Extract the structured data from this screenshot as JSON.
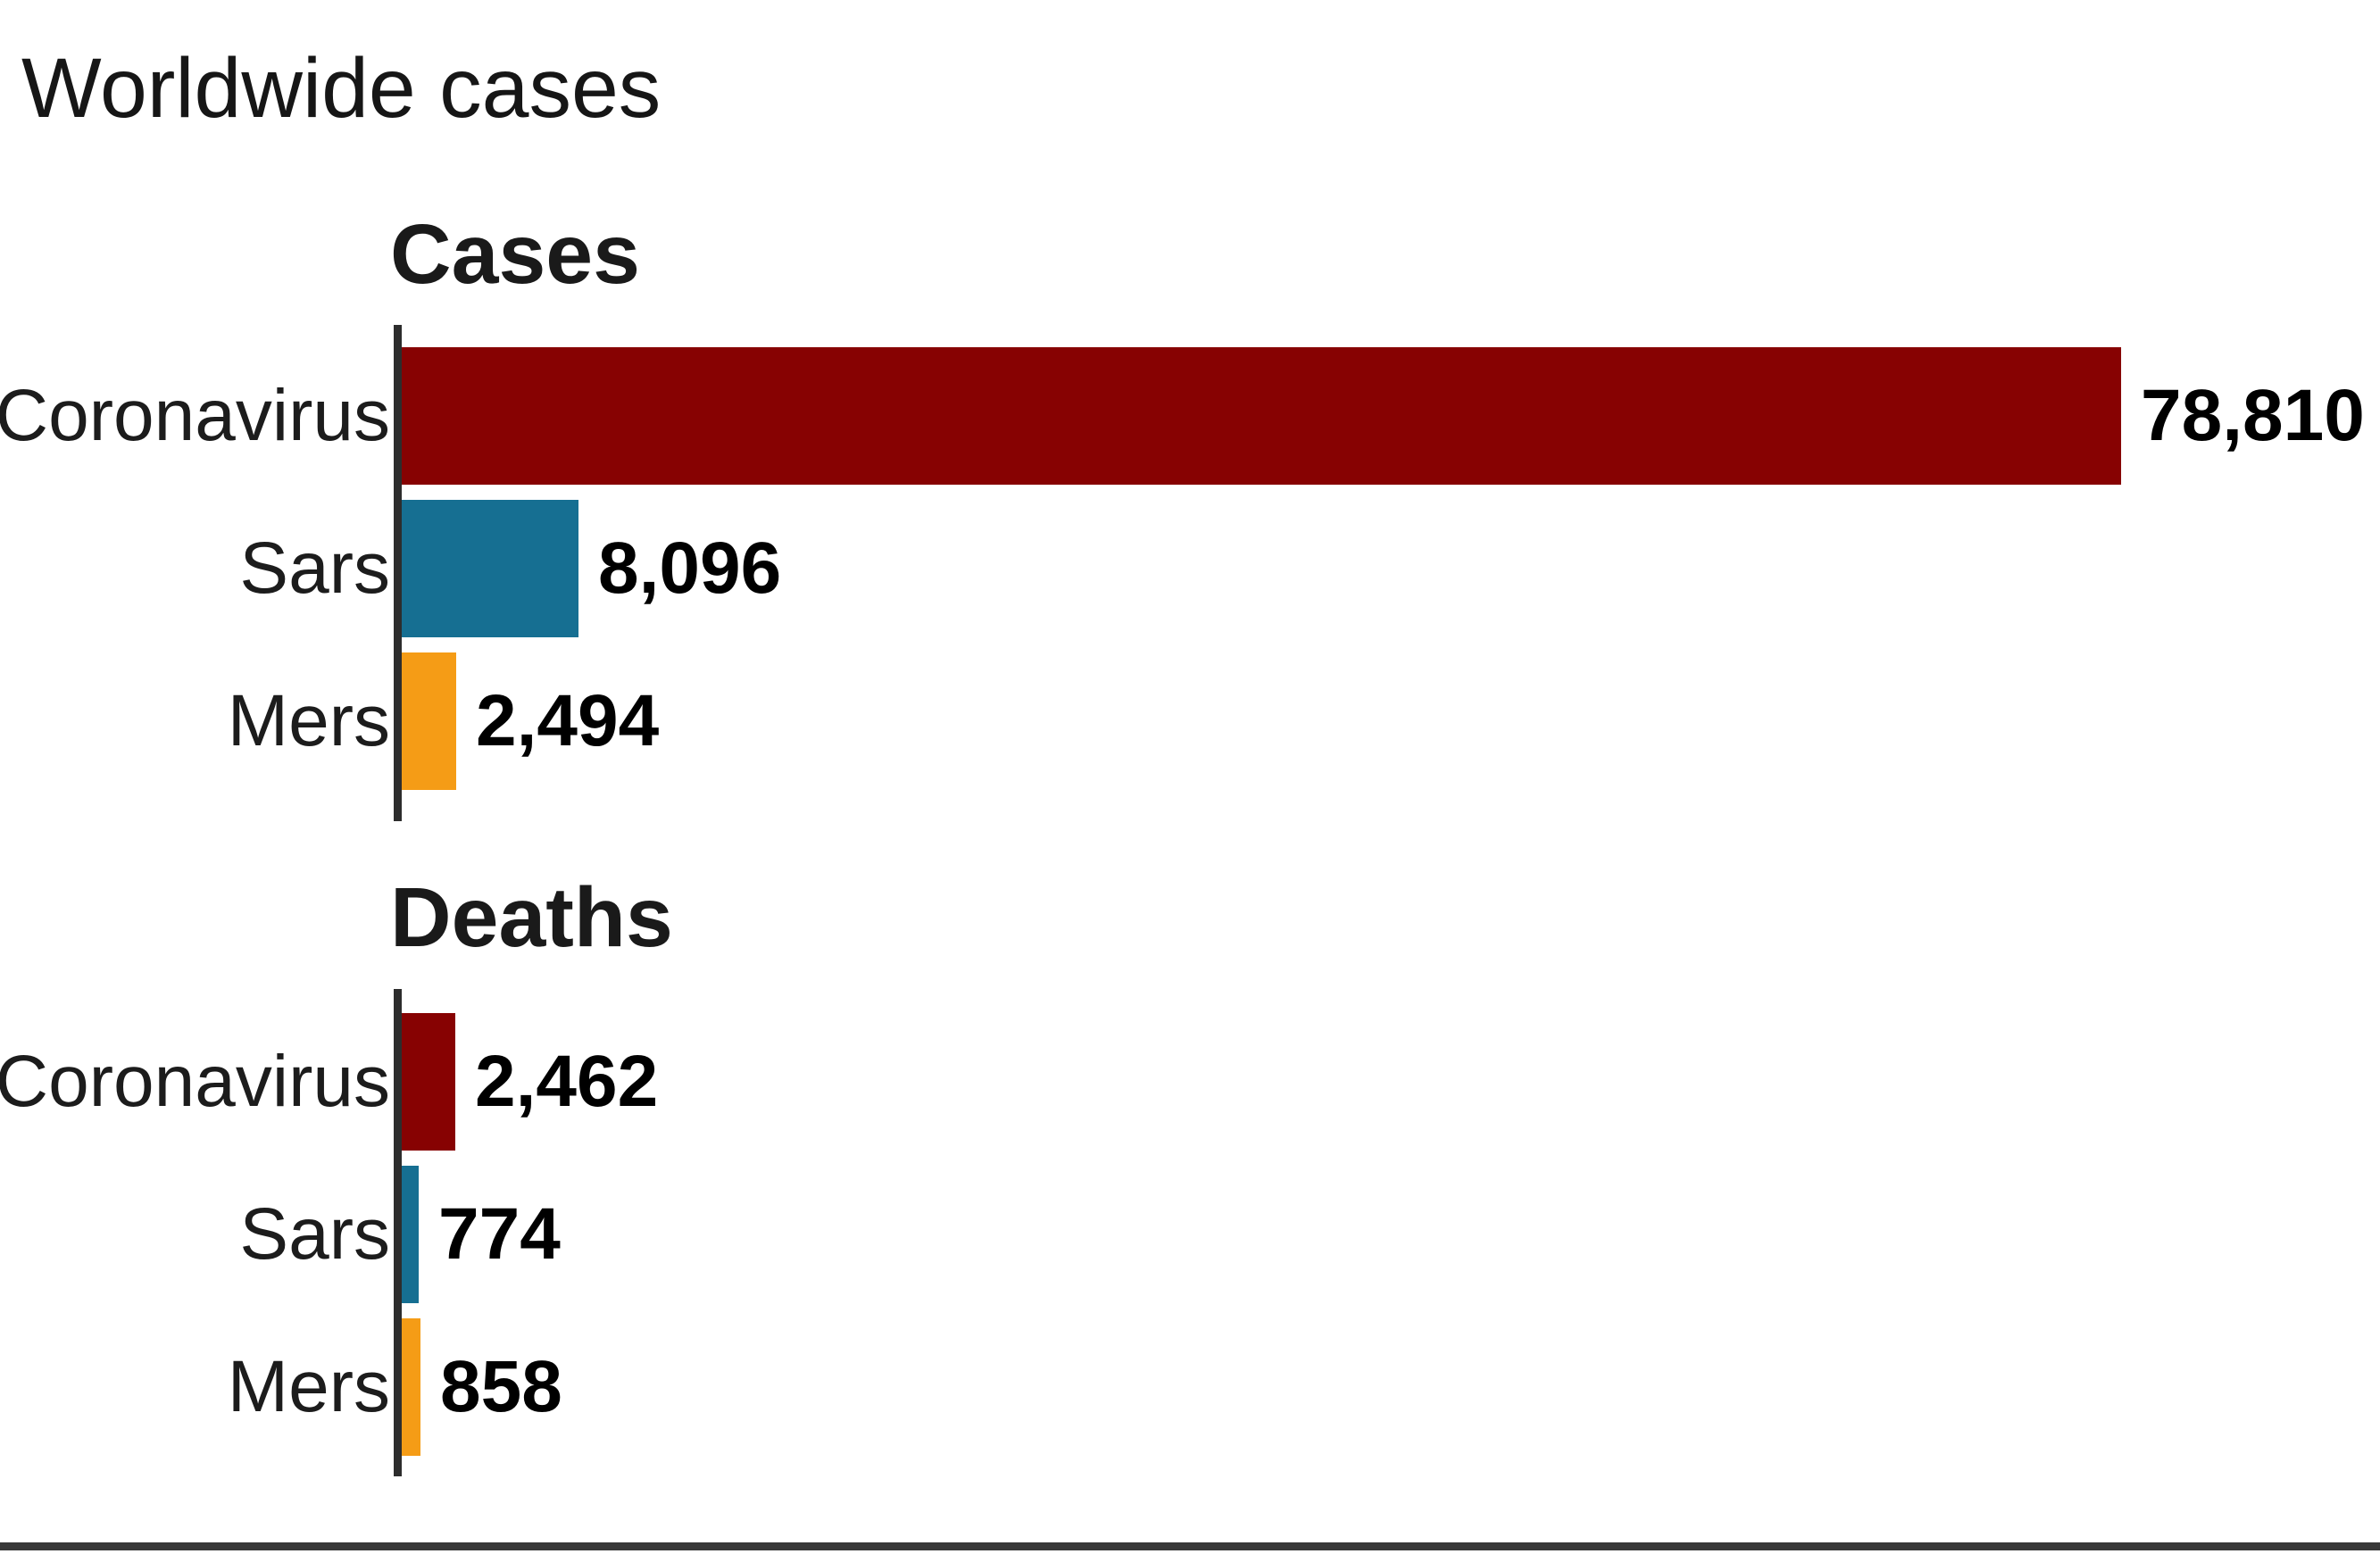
{
  "title": "Worldwide cases",
  "colors": {
    "coronavirus_red": "#870202",
    "sars_blue": "#166f92",
    "mers_orange": "#f59c16",
    "axis": "#2d2d2d",
    "divider": "#383838",
    "text": "#161616"
  },
  "chart_data": [
    {
      "type": "bar",
      "orientation": "horizontal",
      "title": "Cases",
      "categories": [
        "Coronavirus",
        "Sars",
        "Mers"
      ],
      "values": [
        78810,
        8096,
        2494
      ],
      "value_labels": [
        "78,810",
        "8,096",
        "2,494"
      ],
      "colors": [
        "#870202",
        "#166f92",
        "#f59c16"
      ],
      "xlim": [
        0,
        78810
      ],
      "grid": false,
      "legend": "none",
      "value_label_position": "end-of-bar"
    },
    {
      "type": "bar",
      "orientation": "horizontal",
      "title": "Deaths",
      "categories": [
        "Coronavirus",
        "Sars",
        "Mers"
      ],
      "values": [
        2462,
        774,
        858
      ],
      "value_labels": [
        "2,462",
        "774",
        "858"
      ],
      "colors": [
        "#870202",
        "#166f92",
        "#f59c16"
      ],
      "xlim": [
        0,
        78810
      ],
      "grid": false,
      "legend": "none",
      "value_label_position": "end-of-bar"
    }
  ]
}
